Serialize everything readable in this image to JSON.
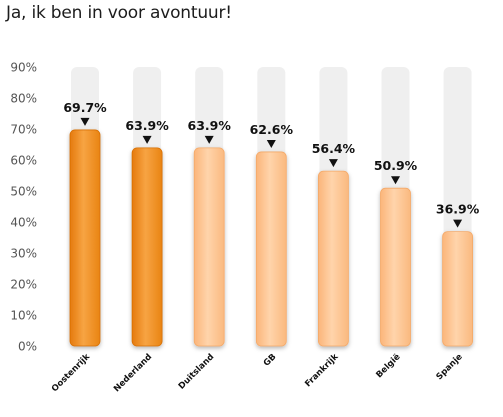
{
  "title": "Ja, ik ben in voor avontuur!",
  "colors": {
    "highlight_fill": "#f28a1a",
    "highlight_fill_light": "#f7a443",
    "normal_fill": "#ffc48f",
    "normal_fill_light": "#ffd7b0",
    "track": "#efefef",
    "highlight_label": "#f28a1a",
    "label": "#111111",
    "tick": "#555555"
  },
  "chart_data": {
    "type": "bar",
    "title": "Ja, ik ben in voor avontuur!",
    "xlabel": "",
    "ylabel": "",
    "ylim": [
      0,
      90
    ],
    "y_ticks": [
      0,
      10,
      20,
      30,
      40,
      50,
      60,
      70,
      80,
      90
    ],
    "y_tick_labels": [
      "0%",
      "10%",
      "20%",
      "30%",
      "40%",
      "50%",
      "60%",
      "70%",
      "80%",
      "90%"
    ],
    "grid": false,
    "legend": "none",
    "categories": [
      "Oostenrijk",
      "Nederland",
      "Duitsland",
      "GB",
      "Frankrijk",
      "België",
      "Spanje"
    ],
    "values": [
      69.7,
      63.9,
      63.9,
      62.6,
      56.4,
      50.9,
      36.9
    ],
    "value_labels": [
      "69.7%",
      "63.9%",
      "63.9%",
      "62.6%",
      "56.4%",
      "50.9%",
      "36.9%"
    ],
    "highlighted": [
      true,
      true,
      false,
      false,
      false,
      false,
      false
    ],
    "highlighted_category_label": "Nederland"
  }
}
